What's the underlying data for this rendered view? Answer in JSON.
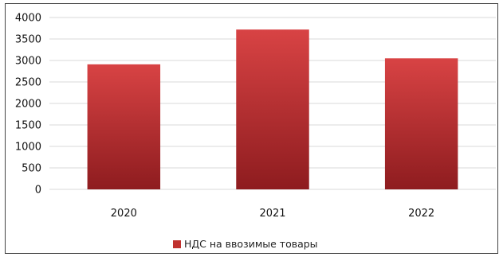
{
  "chart_data": {
    "type": "bar",
    "categories": [
      "2020",
      "2021",
      "2022"
    ],
    "series": [
      {
        "name": "НДС на ввозимые товары",
        "values": [
          2910,
          3720,
          3050
        ]
      }
    ],
    "ylim": [
      0,
      4000
    ],
    "yticks": [
      0,
      500,
      1000,
      1500,
      2000,
      2500,
      3000,
      3500,
      4000
    ],
    "grid": true,
    "legend": "bottom",
    "colors": {
      "bar_top": "#d84344",
      "bar_bottom": "#8e1c1f",
      "grid": "#d9d9d9",
      "legend_swatch": "#c0322f"
    }
  }
}
